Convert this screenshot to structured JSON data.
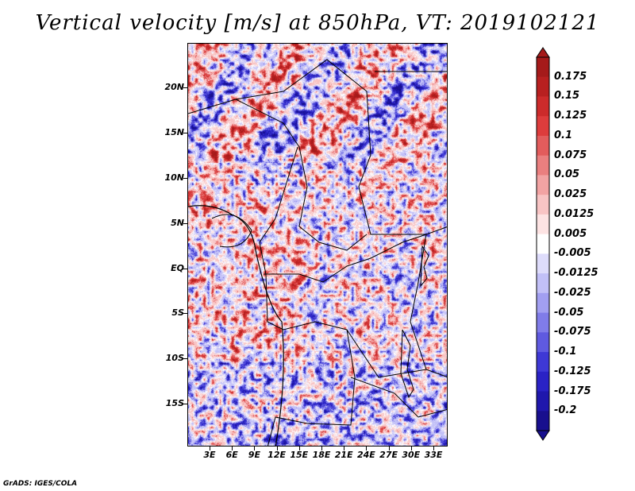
{
  "title": "Vertical velocity [m/s] at 850hPa, VT: 2019102121",
  "footer": "GrADS: IGES/COLA",
  "map": {
    "variable": "vertical velocity",
    "level": "850hPa",
    "valid_time": "2019102121",
    "lat_labels": [
      "20N",
      "15N",
      "10N",
      "5N",
      "EQ",
      "5S",
      "10S",
      "15S"
    ],
    "lon_labels": [
      "3E",
      "6E",
      "9E",
      "12E",
      "15E",
      "18E",
      "21E",
      "24E",
      "27E",
      "30E",
      "33E"
    ]
  },
  "colorbar": {
    "labels": [
      "0.175",
      "0.15",
      "0.125",
      "0.1",
      "0.075",
      "0.05",
      "0.025",
      "0.0125",
      "0.005",
      "-0.005",
      "-0.0125",
      "-0.025",
      "-0.05",
      "-0.075",
      "-0.1",
      "-0.125",
      "-0.175",
      "-0.2"
    ],
    "colors": [
      "#a51a1a",
      "#b82020",
      "#cc2b2b",
      "#dd3c3c",
      "#e25c5c",
      "#ea7f7f",
      "#f2a3a3",
      "#f8c4c4",
      "#fde3e3",
      "#ffffff",
      "#dedcfb",
      "#c2c0f7",
      "#a29ff1",
      "#807ce9",
      "#5f5ae0",
      "#3e38d5",
      "#2a22c5",
      "#1f17ac",
      "#180f8e"
    ]
  }
}
